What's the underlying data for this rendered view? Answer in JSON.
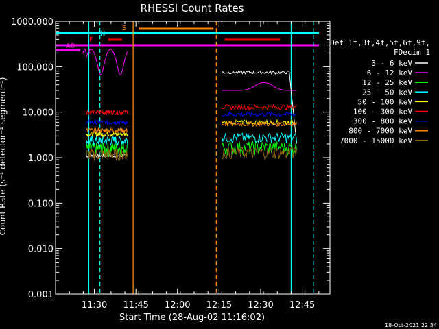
{
  "chart_data": {
    "type": "line",
    "title": "RHESSI Count Rates",
    "xlabel": "Start Time (28-Aug-02 11:16:02)",
    "ylabel": "Count Rate (s⁻¹ detector⁻¹ segment⁻¹)",
    "yscale": "log",
    "xlim": [
      "11:16",
      "12:55"
    ],
    "ylim": [
      0.001,
      1000
    ],
    "x_ticks": [
      "11:30",
      "11:45",
      "12:00",
      "12:15",
      "12:30",
      "12:45"
    ],
    "y_ticks": [
      "0.001",
      "0.010",
      "0.100",
      "1.000",
      "10.000",
      "100.000",
      "1000.000"
    ],
    "legend": {
      "position": "right",
      "header": [
        "Det 1f,3f,4f,5f,6f,9f,",
        "FDecim 1"
      ],
      "entries": [
        {
          "label": "3 - 6 keV",
          "color": "#ffffff"
        },
        {
          "label": "6 - 12 keV",
          "color": "#ff00ff"
        },
        {
          "label": "12 - 25 keV",
          "color": "#00ff00"
        },
        {
          "label": "25 - 50 keV",
          "color": "#00ffff"
        },
        {
          "label": "50 - 100 keV",
          "color": "#ffff00"
        },
        {
          "label": "100 - 300 keV",
          "color": "#ff0000"
        },
        {
          "label": "300 - 800 keV",
          "color": "#0000ff"
        },
        {
          "label": "800 - 7000 keV",
          "color": "#ff8800"
        },
        {
          "label": "7000 - 15000 keV",
          "color": "#8b6508"
        }
      ]
    },
    "segments": [
      {
        "start": "11:27",
        "end": "11:42",
        "levels": {
          "3 - 6 keV": 1.1,
          "6 - 12 keV": 110,
          "12 - 25 keV": 1.6,
          "25 - 50 keV": 2.4,
          "50 - 100 keV": 3.3,
          "100 - 300 keV": 10,
          "300 - 800 keV": 6,
          "800 - 7000 keV": 4,
          "7000 - 15000 keV": 1.2
        }
      },
      {
        "start": "12:16",
        "end": "12:43",
        "levels": {
          "3 - 6 keV": 75,
          "6 - 12 keV": 30,
          "12 - 25 keV": 1.7,
          "25 - 50 keV": 2.8,
          "50 - 100 keV": 6,
          "100 - 300 keV": 13,
          "300 - 800 keV": 9,
          "800 - 7000 keV": 5.5,
          "7000 - 15000 keV": 1.3
        }
      }
    ],
    "flags": [
      {
        "label": "A0",
        "color": "#ff00ff"
      },
      {
        "label": "A1",
        "color": "#ff00ff"
      },
      {
        "label": "F",
        "color": "#ff0000"
      },
      {
        "label": "N",
        "color": "#00ffff"
      },
      {
        "label": "S",
        "color": "#ff8800"
      }
    ],
    "flag_intervals": [
      {
        "flag": "A0",
        "start": "11:16",
        "end": "12:55"
      },
      {
        "flag": "F",
        "start": "11:35",
        "end": "11:40"
      },
      {
        "flag": "F",
        "start": "12:17",
        "end": "12:37"
      },
      {
        "flag": "N",
        "start": "11:16",
        "end": "11:28"
      },
      {
        "flag": "N",
        "start": "12:41",
        "end": "12:50"
      },
      {
        "flag": "S",
        "start": "11:46",
        "end": "12:13"
      }
    ],
    "night_lines": [
      "11:28",
      "11:32",
      "12:41",
      "12:49"
    ],
    "saa_lines": [
      "11:44",
      "12:14"
    ],
    "timestamp": "18-Oct-2021 22:34"
  }
}
